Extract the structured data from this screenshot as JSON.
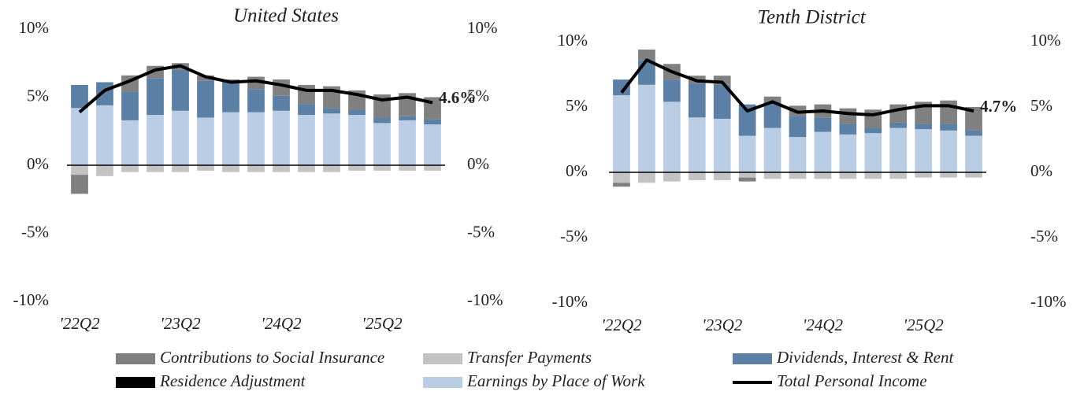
{
  "chart_data": [
    {
      "type": "bar",
      "title": "United States",
      "categories": [
        "'22Q2",
        null,
        null,
        null,
        "'23Q2",
        null,
        null,
        null,
        "'24Q2",
        null,
        null,
        null,
        "'25Q2",
        null,
        null
      ],
      "ylim": [
        -10,
        10
      ],
      "yticks": [
        {
          "value": -10,
          "label": "-10%"
        },
        {
          "value": -5,
          "label": "-5%"
        },
        {
          "value": 0,
          "label": "0%"
        },
        {
          "value": 5,
          "label": "5%"
        },
        {
          "value": 10,
          "label": "10%"
        }
      ],
      "y2lim": [
        -10,
        10
      ],
      "y2ticks": [
        {
          "value": -10,
          "label": "-10%"
        },
        {
          "value": -5,
          "label": "-5%"
        },
        {
          "value": 0,
          "label": "0%"
        },
        {
          "value": 5,
          "label": "5%"
        },
        {
          "value": 10,
          "label": "10%"
        }
      ],
      "series": [
        {
          "name": "Contributions to Social Insurance",
          "color": "#808080",
          "values": [
            -1.4,
            0,
            1.2,
            0.9,
            0.5,
            0.4,
            0.2,
            0.9,
            1.2,
            1.4,
            1.6,
            1.4,
            1.7,
            1.7,
            1.6
          ]
        },
        {
          "name": "Transfer Payments",
          "color": "#c3c3c3",
          "values": [
            -0.7,
            -0.8,
            -0.5,
            -0.5,
            -0.5,
            -0.4,
            -0.5,
            -0.5,
            -0.5,
            -0.5,
            -0.5,
            -0.4,
            -0.4,
            -0.4,
            -0.4
          ]
        },
        {
          "name": "Dividends, Interest & Rent",
          "color": "#5b7fa5",
          "values": [
            1.7,
            1.7,
            2.1,
            2.7,
            3.0,
            2.7,
            2.2,
            1.7,
            1.1,
            0.8,
            0.4,
            0.4,
            0.4,
            0.3,
            0.4
          ]
        },
        {
          "name": "Residence Adjustment",
          "color": "#000000",
          "values": [
            0,
            0,
            0,
            0,
            0,
            0,
            0,
            0,
            0,
            0,
            0,
            0,
            0,
            0,
            0
          ]
        },
        {
          "name": "Earnings by Place of Work",
          "color": "#b9cde5",
          "values": [
            4.2,
            4.4,
            3.3,
            3.7,
            4.0,
            3.5,
            3.9,
            3.9,
            4.0,
            3.7,
            3.8,
            3.7,
            3.1,
            3.3,
            3.0
          ]
        },
        {
          "name": "Total Personal Income",
          "color": "#000000",
          "type": "line",
          "values": [
            3.9,
            5.5,
            6.2,
            7.0,
            7.3,
            6.5,
            6.1,
            6.2,
            5.9,
            5.5,
            5.5,
            5.2,
            4.8,
            5.0,
            4.6
          ],
          "value_labels": [
            null,
            null,
            null,
            null,
            null,
            null,
            null,
            null,
            null,
            null,
            null,
            null,
            null,
            null,
            "4.6%"
          ]
        }
      ]
    },
    {
      "type": "bar",
      "title": "Tenth District",
      "categories": [
        "'22Q2",
        null,
        null,
        null,
        "'23Q2",
        null,
        null,
        null,
        "'24Q2",
        null,
        null,
        null,
        "'25Q2",
        null,
        null
      ],
      "ylim": [
        -10,
        10
      ],
      "yticks": [
        {
          "value": -10,
          "label": "-10%"
        },
        {
          "value": -5,
          "label": "-5%"
        },
        {
          "value": 0,
          "label": "0%"
        },
        {
          "value": 5,
          "label": "5%"
        },
        {
          "value": 10,
          "label": "10%"
        }
      ],
      "y2lim": [
        -10,
        10
      ],
      "y2ticks": [
        {
          "value": -10,
          "label": "-10%"
        },
        {
          "value": -5,
          "label": "-5%"
        },
        {
          "value": 0,
          "label": "0%"
        },
        {
          "value": 5,
          "label": "5%"
        },
        {
          "value": 10,
          "label": "10%"
        }
      ],
      "series": [
        {
          "name": "Contributions to Social Insurance",
          "color": "#808080",
          "values": [
            -0.3,
            0.8,
            1.2,
            0.6,
            0.7,
            -0.3,
            0.4,
            0.8,
            1.0,
            1.2,
            1.4,
            1.4,
            1.7,
            1.8,
            1.8
          ]
        },
        {
          "name": "Transfer Payments",
          "color": "#c3c3c3",
          "values": [
            -0.8,
            -0.8,
            -0.7,
            -0.6,
            -0.6,
            -0.4,
            -0.5,
            -0.5,
            -0.5,
            -0.5,
            -0.5,
            -0.5,
            -0.4,
            -0.4,
            -0.4
          ]
        },
        {
          "name": "Dividends, Interest & Rent",
          "color": "#5b7fa5",
          "values": [
            1.2,
            1.9,
            1.7,
            2.6,
            2.6,
            2.4,
            2.0,
            1.6,
            1.1,
            0.8,
            0.4,
            0.4,
            0.4,
            0.5,
            0.4
          ]
        },
        {
          "name": "Residence Adjustment",
          "color": "#000000",
          "values": [
            0,
            0,
            0,
            0,
            0,
            0,
            0,
            0,
            0,
            0,
            0,
            0,
            0,
            0,
            0
          ]
        },
        {
          "name": "Earnings by Place of Work",
          "color": "#b9cde5",
          "values": [
            5.9,
            6.7,
            5.4,
            4.2,
            4.1,
            2.8,
            3.4,
            2.7,
            3.1,
            2.9,
            3.0,
            3.4,
            3.3,
            3.2,
            2.8
          ]
        },
        {
          "name": "Total Personal Income",
          "color": "#000000",
          "type": "line",
          "values": [
            6.1,
            8.6,
            7.7,
            7.0,
            6.9,
            4.7,
            5.4,
            4.6,
            4.7,
            4.5,
            4.4,
            4.8,
            5.1,
            5.1,
            4.7
          ],
          "value_labels": [
            null,
            null,
            null,
            null,
            null,
            null,
            null,
            null,
            null,
            null,
            null,
            null,
            null,
            null,
            "4.7%"
          ]
        }
      ]
    }
  ]
}
